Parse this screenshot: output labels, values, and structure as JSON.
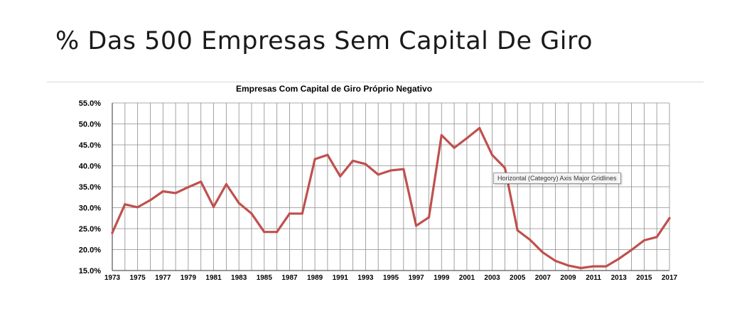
{
  "slide": {
    "title": "% Das 500 Empresas Sem Capital De Giro"
  },
  "tooltip": {
    "text": "Horizontal (Category) Axis Major Gridlines"
  },
  "chart_data": {
    "type": "line",
    "title": "Empresas Com Capital de Giro Próprio Negativo",
    "xlabel": "",
    "ylabel": "",
    "ylim": [
      15,
      55
    ],
    "yticks": [
      "15.0%",
      "20.0%",
      "25.0%",
      "30.0%",
      "35.0%",
      "40.0%",
      "45.0%",
      "50.0%",
      "55.0%"
    ],
    "x": [
      1973,
      1974,
      1975,
      1976,
      1977,
      1978,
      1979,
      1980,
      1981,
      1982,
      1983,
      1984,
      1985,
      1986,
      1987,
      1988,
      1989,
      1990,
      1991,
      1992,
      1993,
      1994,
      1995,
      1996,
      1997,
      1998,
      1999,
      2000,
      2001,
      2002,
      2003,
      2004,
      2005,
      2006,
      2007,
      2008,
      2009,
      2010,
      2011,
      2012,
      2013,
      2014,
      2015,
      2016,
      2017
    ],
    "xtick_labels": [
      "1973",
      "1975",
      "1977",
      "1979",
      "1981",
      "1983",
      "1985",
      "1987",
      "1989",
      "1991",
      "1993",
      "1995",
      "1997",
      "1999",
      "2001",
      "2003",
      "2005",
      "2007",
      "2009",
      "2011",
      "2013",
      "2015",
      "2017"
    ],
    "series": [
      {
        "values": [
          24.0,
          30.8,
          30.1,
          31.8,
          33.9,
          33.5,
          34.9,
          36.2,
          30.2,
          35.6,
          31.1,
          28.6,
          24.2,
          24.2,
          28.6,
          28.6,
          41.6,
          42.6,
          37.5,
          41.2,
          40.4,
          37.9,
          38.9,
          39.2,
          25.7,
          27.7,
          47.3,
          44.3,
          46.6,
          49.0,
          42.6,
          39.5,
          24.6,
          22.3,
          19.3,
          17.3,
          16.2,
          15.6,
          16.0,
          16.0,
          17.8,
          19.9,
          22.2,
          23.0,
          27.5
        ],
        "color": "#c0504d"
      }
    ],
    "grid": true
  }
}
